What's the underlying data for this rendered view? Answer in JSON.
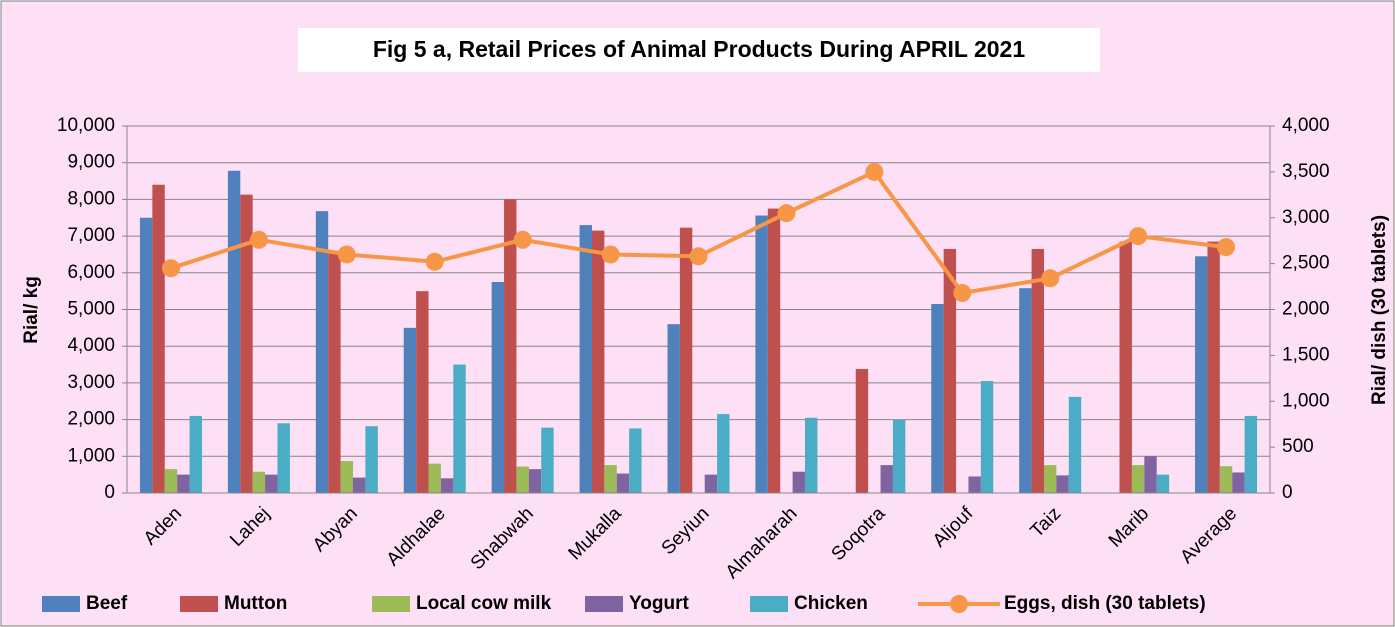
{
  "chart_data": {
    "type": "bar",
    "title": "Fig 5 a, Retail Prices of Animal Products During APRIL 2021",
    "y_label": "Rial/ kg",
    "y2_label": "Rial/ dish (30 tablets)",
    "categories": [
      "Aden",
      "Lahej",
      "Abyan",
      "Aldhalae",
      "Shabwah",
      "Mukalla",
      "Seyiun",
      "Almaharah",
      "Soqotra",
      "Aljouf",
      "Taiz",
      "Marib",
      "Average"
    ],
    "series": [
      {
        "name": "Beef",
        "color": "#4f81bd",
        "values": [
          7500,
          8780,
          7680,
          4500,
          5750,
          7300,
          4600,
          7560,
          null,
          5150,
          5580,
          null,
          6450
        ]
      },
      {
        "name": "Mutton",
        "color": "#c0504d",
        "values": [
          8400,
          8130,
          6600,
          5500,
          8000,
          7150,
          7230,
          7750,
          3380,
          6650,
          6650,
          6850,
          6850
        ]
      },
      {
        "name": "Local cow milk",
        "color": "#9bbb59",
        "values": [
          650,
          580,
          870,
          800,
          720,
          760,
          null,
          null,
          null,
          null,
          760,
          760,
          730
        ]
      },
      {
        "name": "Yogurt",
        "color": "#8064a2",
        "values": [
          500,
          500,
          420,
          400,
          650,
          530,
          500,
          580,
          760,
          450,
          480,
          1000,
          560
        ]
      },
      {
        "name": "Chicken",
        "color": "#4bacc6",
        "values": [
          2100,
          1900,
          1820,
          3500,
          1780,
          1760,
          2150,
          2050,
          2000,
          3050,
          2620,
          500,
          2100
        ]
      },
      {
        "name": "Eggs, dish (30 tablets)",
        "color": "#f79646",
        "type": "line",
        "axis": "y2",
        "values": [
          2450,
          2760,
          2600,
          2520,
          2760,
          2600,
          2580,
          3050,
          3500,
          2180,
          2340,
          2800,
          2680
        ]
      }
    ],
    "ylim": [
      0,
      10000
    ],
    "yticks": [
      0,
      {
        "value": 1000,
        "label": "1,000"
      },
      {
        "value": 2000,
        "label": "2,000"
      },
      {
        "value": 3000,
        "label": "3,000"
      },
      {
        "value": 4000,
        "label": "4,000"
      },
      {
        "value": 5000,
        "label": "5,000"
      },
      {
        "value": 6000,
        "label": "6,000"
      },
      {
        "value": 7000,
        "label": "7,000"
      },
      {
        "value": 8000,
        "label": "8,000"
      },
      {
        "value": 9000,
        "label": "9,000"
      },
      {
        "value": 10000,
        "label": "10,000"
      }
    ],
    "y2lim": [
      0,
      4000
    ],
    "y2ticks": [
      0,
      500,
      {
        "value": 1000,
        "label": "1,000"
      },
      {
        "value": 1500,
        "label": "1,500"
      },
      {
        "value": 2000,
        "label": "2,000"
      },
      {
        "value": 2500,
        "label": "2,500"
      },
      {
        "value": 3000,
        "label": "3,000"
      },
      {
        "value": 3500,
        "label": "3,500"
      },
      {
        "value": 4000,
        "label": "4,000"
      }
    ],
    "grid": true,
    "legend": "bottom"
  }
}
